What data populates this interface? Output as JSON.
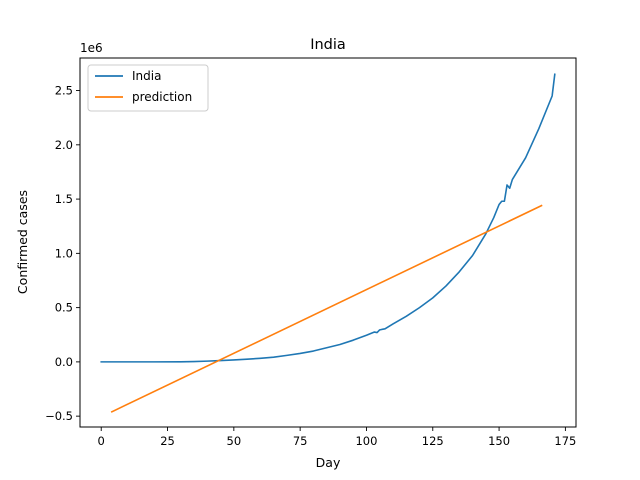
{
  "chart_data": {
    "type": "line",
    "title": "India",
    "xlabel": "Day",
    "ylabel": "Confirmed cases",
    "y_offset_label": "1e6",
    "xlim": [
      -8,
      179
    ],
    "ylim": [
      -0.6,
      2.8
    ],
    "x_ticks": [
      0,
      25,
      50,
      75,
      100,
      125,
      150,
      175
    ],
    "y_ticks": [
      -0.5,
      0.0,
      0.5,
      1.0,
      1.5,
      2.0,
      2.5
    ],
    "y_tick_labels": [
      "−0.5",
      "0.0",
      "0.5",
      "1.0",
      "1.5",
      "2.0",
      "2.5"
    ],
    "grid": false,
    "legend_position": "top-left",
    "series": [
      {
        "name": "India",
        "color": "#1f77b4",
        "x": [
          0,
          10,
          20,
          30,
          35,
          40,
          45,
          50,
          55,
          60,
          65,
          70,
          75,
          80,
          85,
          90,
          95,
          100,
          103,
          104,
          105,
          107,
          108,
          110,
          115,
          120,
          125,
          130,
          135,
          140,
          145,
          148,
          150,
          151,
          152,
          153,
          154,
          155,
          160,
          165,
          170,
          171
        ],
        "y": [
          0.0,
          0.0,
          0.0,
          0.001,
          0.003,
          0.007,
          0.012,
          0.018,
          0.025,
          0.033,
          0.043,
          0.06,
          0.078,
          0.1,
          0.13,
          0.16,
          0.2,
          0.245,
          0.275,
          0.27,
          0.295,
          0.305,
          0.32,
          0.35,
          0.42,
          0.5,
          0.59,
          0.7,
          0.83,
          0.98,
          1.18,
          1.33,
          1.45,
          1.48,
          1.48,
          1.63,
          1.6,
          1.68,
          1.88,
          2.15,
          2.45,
          2.65
        ]
      },
      {
        "name": "prediction",
        "color": "#ff7f0e",
        "x": [
          4,
          166
        ],
        "y": [
          -0.46,
          1.44
        ]
      }
    ]
  }
}
